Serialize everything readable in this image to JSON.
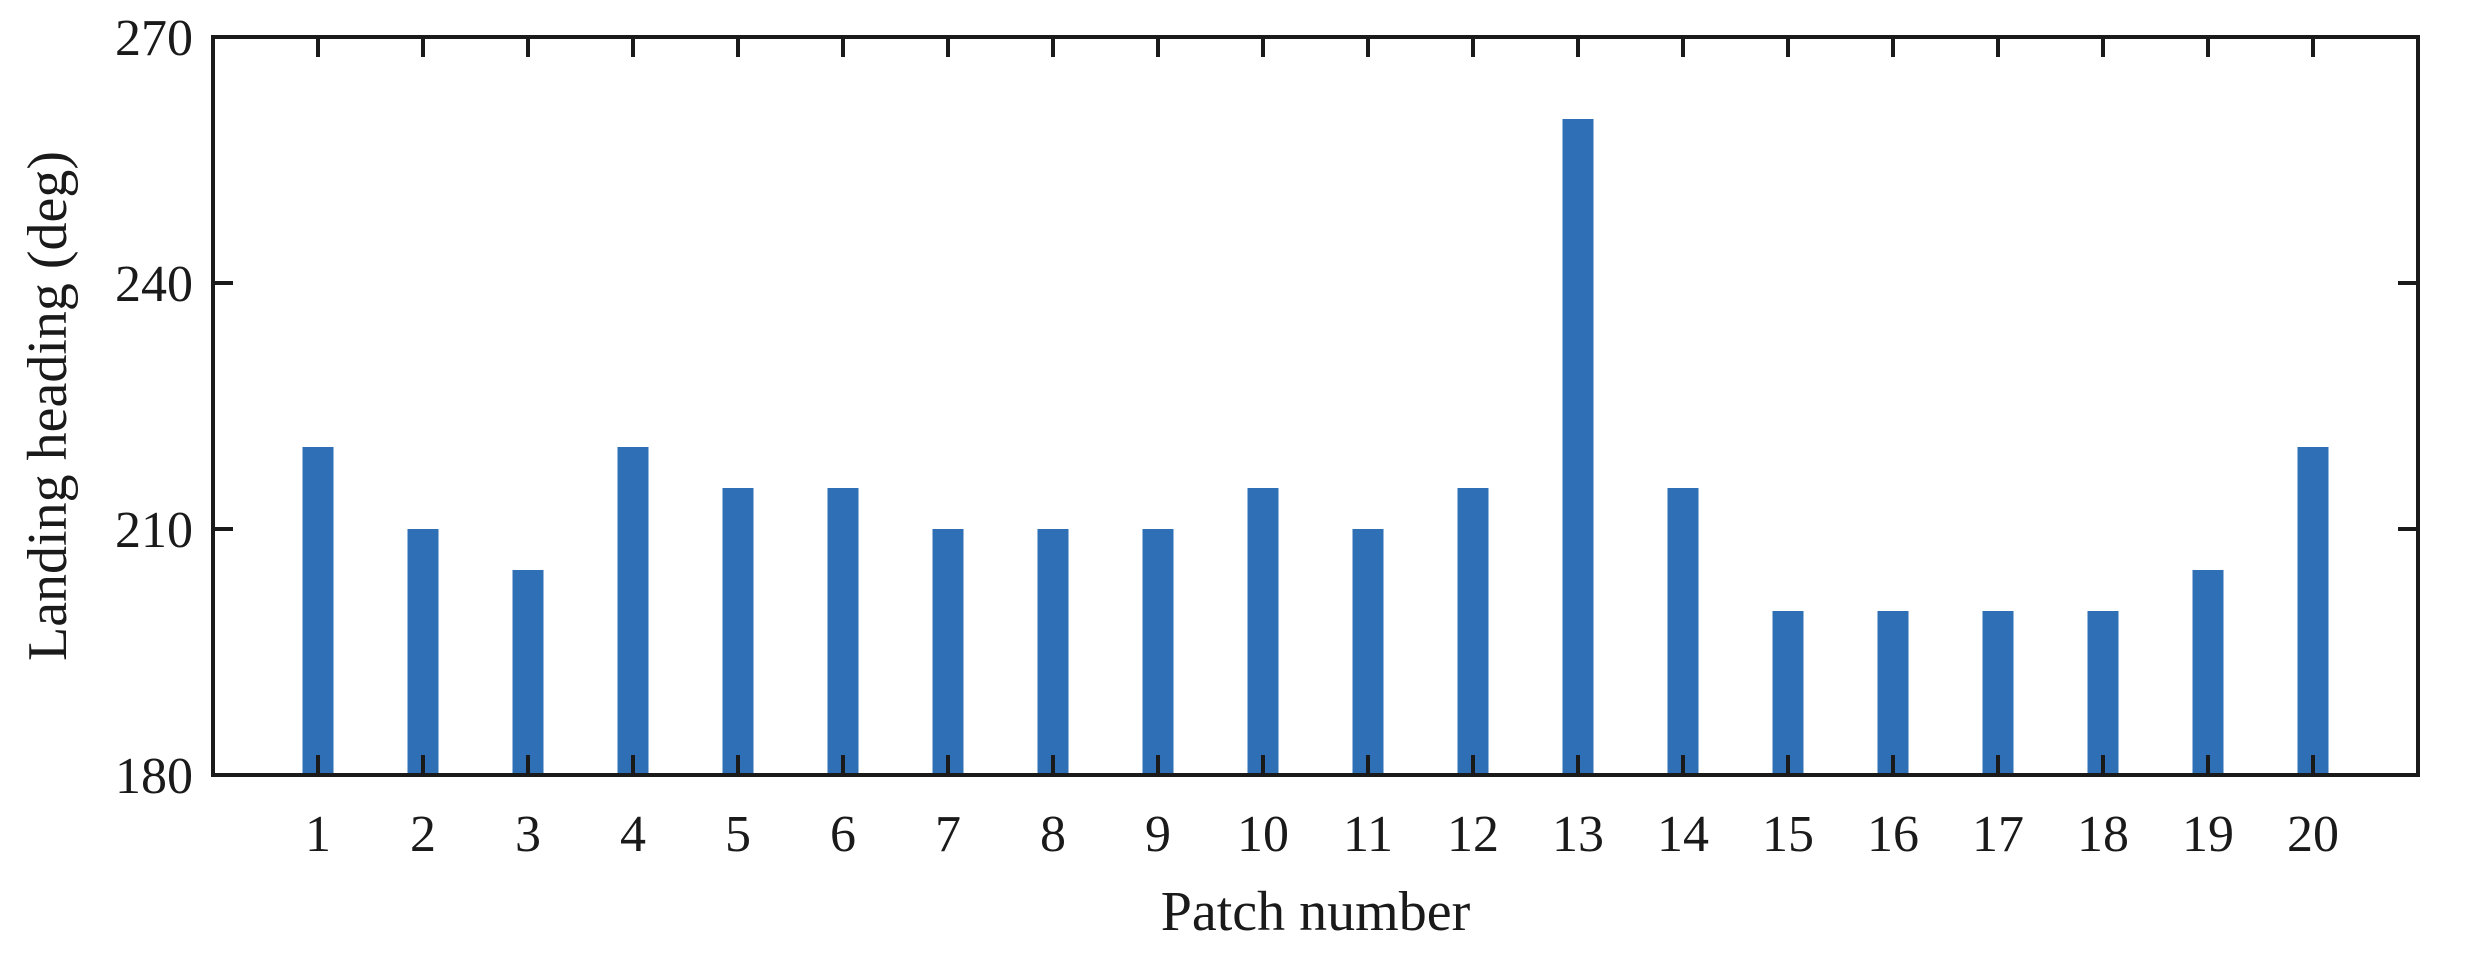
{
  "chart_data": {
    "type": "bar",
    "title": "",
    "xlabel": "Patch number",
    "ylabel": "Landing heading (deg)",
    "categories": [
      "1",
      "2",
      "3",
      "4",
      "5",
      "6",
      "7",
      "8",
      "9",
      "10",
      "11",
      "12",
      "13",
      "14",
      "15",
      "16",
      "17",
      "18",
      "19",
      "20"
    ],
    "values": [
      220,
      210,
      205,
      220,
      215,
      215,
      210,
      210,
      210,
      215,
      210,
      215,
      260,
      215,
      200,
      200,
      200,
      200,
      205,
      220
    ],
    "ylim": [
      180,
      270
    ],
    "yticks": [
      "180",
      "210",
      "240",
      "270"
    ],
    "grid": false,
    "legend": "none",
    "colors": {
      "bar": "#2e6fb6",
      "axis": "#1a1a1a"
    }
  }
}
